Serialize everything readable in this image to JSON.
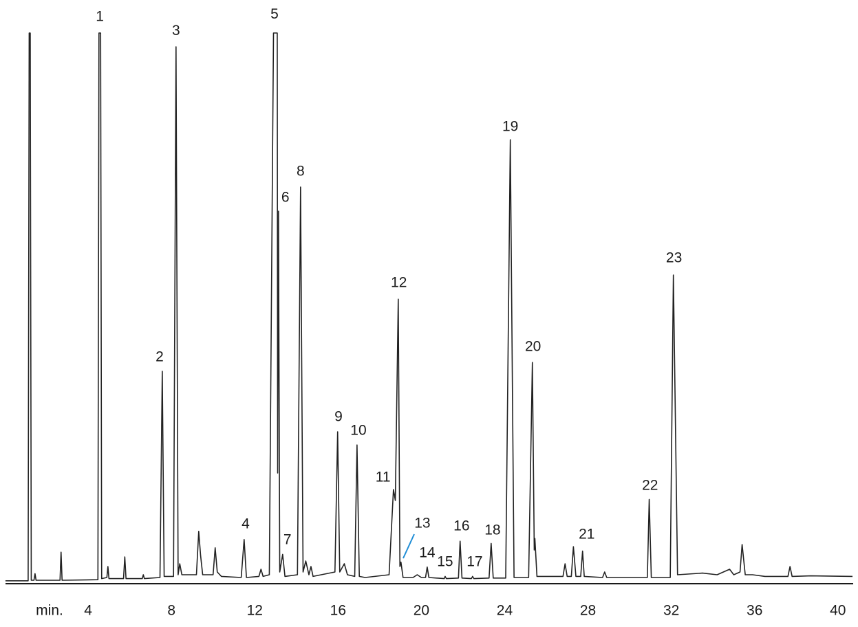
{
  "chart_data": {
    "type": "line",
    "x_label": "min.",
    "xlim": [
      0,
      40.7
    ],
    "ylim": [
      0,
      100
    ],
    "xticks": [
      4,
      8,
      12,
      16,
      20,
      24,
      28,
      32,
      36,
      40
    ],
    "series": [
      {
        "color": "#222222",
        "x": [
          0.03,
          1.12,
          1.17,
          1.22,
          1.27,
          1.4,
          1.45,
          1.5,
          2.65,
          2.7,
          2.75,
          4.47,
          4.52,
          4.6,
          4.65,
          4.9,
          4.95,
          5.0,
          5.7,
          5.76,
          5.82,
          6.6,
          6.65,
          6.7,
          7.45,
          7.56,
          7.65,
          8.1,
          8.22,
          8.32,
          8.4,
          8.5,
          9.2,
          9.31,
          9.4,
          9.5,
          10.0,
          10.1,
          10.2,
          10.4,
          11.35,
          11.49,
          11.6,
          12.2,
          12.3,
          12.4,
          12.7,
          12.9,
          13.08,
          13.1,
          13.14,
          13.2,
          13.34,
          13.45,
          14.05,
          14.2,
          14.32,
          14.45,
          14.6,
          14.7,
          14.8,
          15.85,
          15.98,
          16.08,
          16.3,
          16.45,
          16.8,
          16.91,
          17.02,
          17.3,
          18.45,
          18.66,
          18.75,
          18.89,
          18.97,
          19.02,
          19.12,
          19.6,
          19.8,
          20.0,
          20.2,
          20.28,
          20.36,
          21.1,
          21.14,
          21.2,
          21.78,
          21.86,
          21.95,
          22.4,
          22.46,
          22.52,
          23.25,
          23.35,
          23.45,
          24.05,
          24.27,
          24.45,
          25.15,
          25.33,
          25.42,
          25.45,
          25.55,
          26.8,
          26.9,
          27.0,
          27.2,
          27.3,
          27.42,
          27.65,
          27.74,
          27.82,
          28.7,
          28.8,
          28.9,
          30.85,
          30.94,
          31.04,
          31.95,
          32.1,
          32.3,
          33.5,
          34.2,
          34.8,
          35.0,
          35.3,
          35.4,
          35.55,
          35.9,
          36.5,
          37.6,
          37.7,
          37.8,
          38.7,
          40.7
        ],
        "values": [
          0.4,
          0.4,
          100,
          100,
          0.5,
          0.5,
          1.7,
          0.5,
          0.5,
          5.6,
          0.5,
          0.6,
          100,
          100,
          0.8,
          1.0,
          3,
          0.8,
          0.8,
          4.75,
          0.8,
          0.8,
          1.5,
          0.8,
          1,
          38.5,
          1.2,
          1.2,
          97.5,
          1.5,
          3.5,
          1.5,
          1.5,
          9.4,
          5,
          1.5,
          1.5,
          6.4,
          2,
          1.2,
          1.0,
          7.9,
          1.0,
          1.2,
          2.5,
          1.2,
          1.5,
          100,
          100,
          20,
          67.6,
          2,
          5.2,
          1.2,
          1.5,
          72,
          2,
          4,
          1.5,
          3,
          1.2,
          2,
          27.5,
          2,
          3.5,
          1.5,
          1.2,
          25.1,
          1.2,
          1.0,
          1.5,
          17,
          15,
          51.6,
          3,
          3.8,
          1,
          1.0,
          1.5,
          1.0,
          1,
          2.9,
          1,
          0.8,
          1.2,
          0.8,
          0.9,
          7.6,
          0.9,
          0.8,
          1.2,
          0.8,
          0.9,
          7.2,
          0.9,
          0.9,
          80.6,
          1,
          1,
          40.1,
          6,
          8.1,
          1.2,
          1.2,
          3.5,
          1.2,
          1.2,
          6.6,
          1.2,
          1.2,
          5.8,
          1.2,
          1,
          2,
          1,
          1,
          15.2,
          1,
          1,
          56,
          1.5,
          1.8,
          1.5,
          2.5,
          1.5,
          2,
          7,
          1.5,
          1.5,
          1.2,
          1.2,
          3,
          1.2,
          1.3,
          1.2
        ]
      }
    ],
    "annotations": [
      {
        "text": "1",
        "x": 4.56,
        "y": 102.9
      },
      {
        "text": "2",
        "x": 7.43,
        "y": 41
      },
      {
        "text": "3",
        "x": 8.22,
        "y": 100.3
      },
      {
        "text": "4",
        "x": 11.56,
        "y": 10.6
      },
      {
        "text": "5",
        "x": 12.95,
        "y": 103.3
      },
      {
        "text": "6",
        "x": 13.47,
        "y": 70
      },
      {
        "text": "7",
        "x": 13.57,
        "y": 7.75
      },
      {
        "text": "8",
        "x": 14.2,
        "y": 74.75
      },
      {
        "text": "9",
        "x": 16.02,
        "y": 30.1
      },
      {
        "text": "10",
        "x": 16.98,
        "y": 27.6
      },
      {
        "text": "11",
        "x": 18.16,
        "y": 19.1
      },
      {
        "text": "12",
        "x": 18.92,
        "y": 54.5
      },
      {
        "text": "13",
        "x": 20.05,
        "y": 10.75
      },
      {
        "text": "14",
        "x": 20.28,
        "y": 5.4
      },
      {
        "text": "15",
        "x": 21.14,
        "y": 3.75
      },
      {
        "text": "16",
        "x": 21.93,
        "y": 10.25
      },
      {
        "text": "17",
        "x": 22.56,
        "y": 3.75
      },
      {
        "text": "18",
        "x": 23.42,
        "y": 9.5
      },
      {
        "text": "19",
        "x": 24.27,
        "y": 82.9
      },
      {
        "text": "20",
        "x": 25.36,
        "y": 42.9
      },
      {
        "text": "21",
        "x": 27.94,
        "y": 8.75
      },
      {
        "text": "22",
        "x": 30.98,
        "y": 17.6
      },
      {
        "text": "23",
        "x": 32.13,
        "y": 59
      }
    ]
  }
}
